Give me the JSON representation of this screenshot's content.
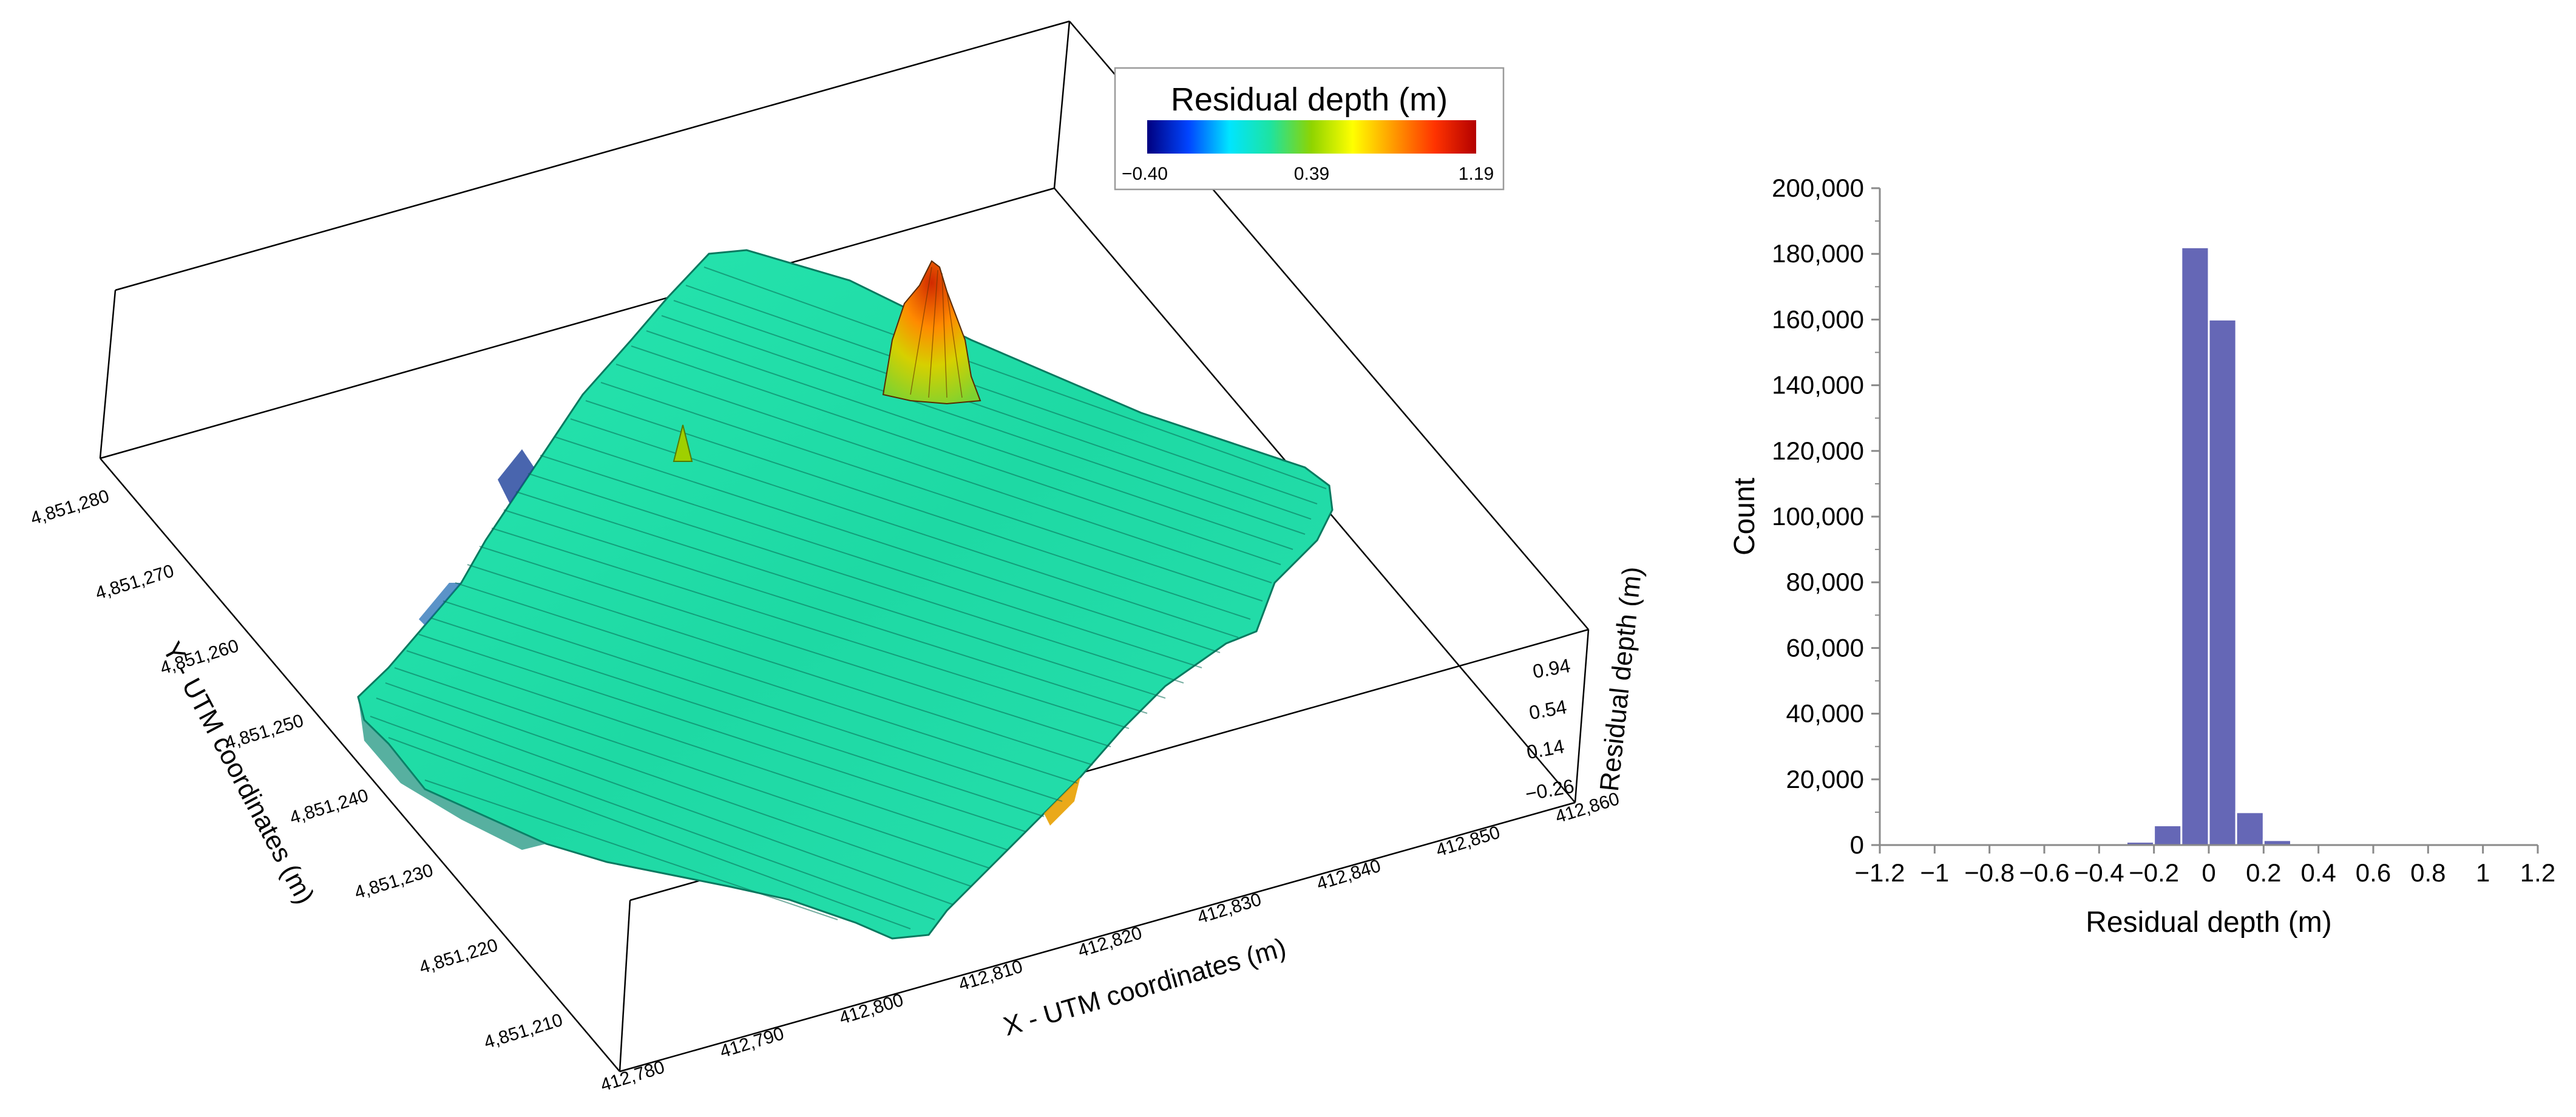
{
  "colorbar": {
    "title": "Residual depth (m)",
    "min_label": "−0.40",
    "mid_label": "0.39",
    "max_label": "1.19",
    "colormap": [
      "#00007f",
      "#0044ff",
      "#00e5ff",
      "#1ee3a0",
      "#8fd400",
      "#ffff00",
      "#ff9900",
      "#ff3300",
      "#b30000"
    ]
  },
  "chart_data": [
    {
      "type": "surface3d",
      "xlabel": "X - UTM coordinates (m)",
      "ylabel": "Y - UTM coordinates (m)",
      "zlabel": "Residual depth (m)",
      "x_ticks": [
        "412,780",
        "412,790",
        "412,800",
        "412,810",
        "412,820",
        "412,830",
        "412,840",
        "412,850",
        "412,860"
      ],
      "y_ticks": [
        "4,851,210",
        "4,851,220",
        "4,851,230",
        "4,851,240",
        "4,851,250",
        "4,851,260",
        "4,851,270",
        "4,851,280"
      ],
      "z_ticks": [
        "−0.26",
        "0.14",
        "0.54",
        "0.94"
      ],
      "zlim": [
        -0.4,
        1.19
      ],
      "peak_value": 1.19,
      "surface_color": "#1ee3a8"
    },
    {
      "type": "bar",
      "xlabel": "Residual depth (m)",
      "ylabel": "Count",
      "xlim": [
        -1.2,
        1.2
      ],
      "ylim": [
        0,
        200000
      ],
      "x_ticks": [
        "−1.2",
        "−1",
        "−0.8",
        "−0.6",
        "−0.4",
        "−0.2",
        "0",
        "0.2",
        "0.4",
        "0.6",
        "0.8",
        "1",
        "1.2"
      ],
      "y_ticks": [
        "0",
        "20,000",
        "40,000",
        "60,000",
        "80,000",
        "100,000",
        "120,000",
        "140,000",
        "160,000",
        "180,000",
        "200,000"
      ],
      "bin_width": 0.1,
      "bins": [
        {
          "start": -0.3,
          "value": 1000
        },
        {
          "start": -0.2,
          "value": 6000
        },
        {
          "start": -0.1,
          "value": 182000
        },
        {
          "start": 0.0,
          "value": 160000
        },
        {
          "start": 0.1,
          "value": 10000
        },
        {
          "start": 0.2,
          "value": 1500
        },
        {
          "start": 0.3,
          "value": 300
        }
      ],
      "bar_color": "#6567b6"
    }
  ]
}
